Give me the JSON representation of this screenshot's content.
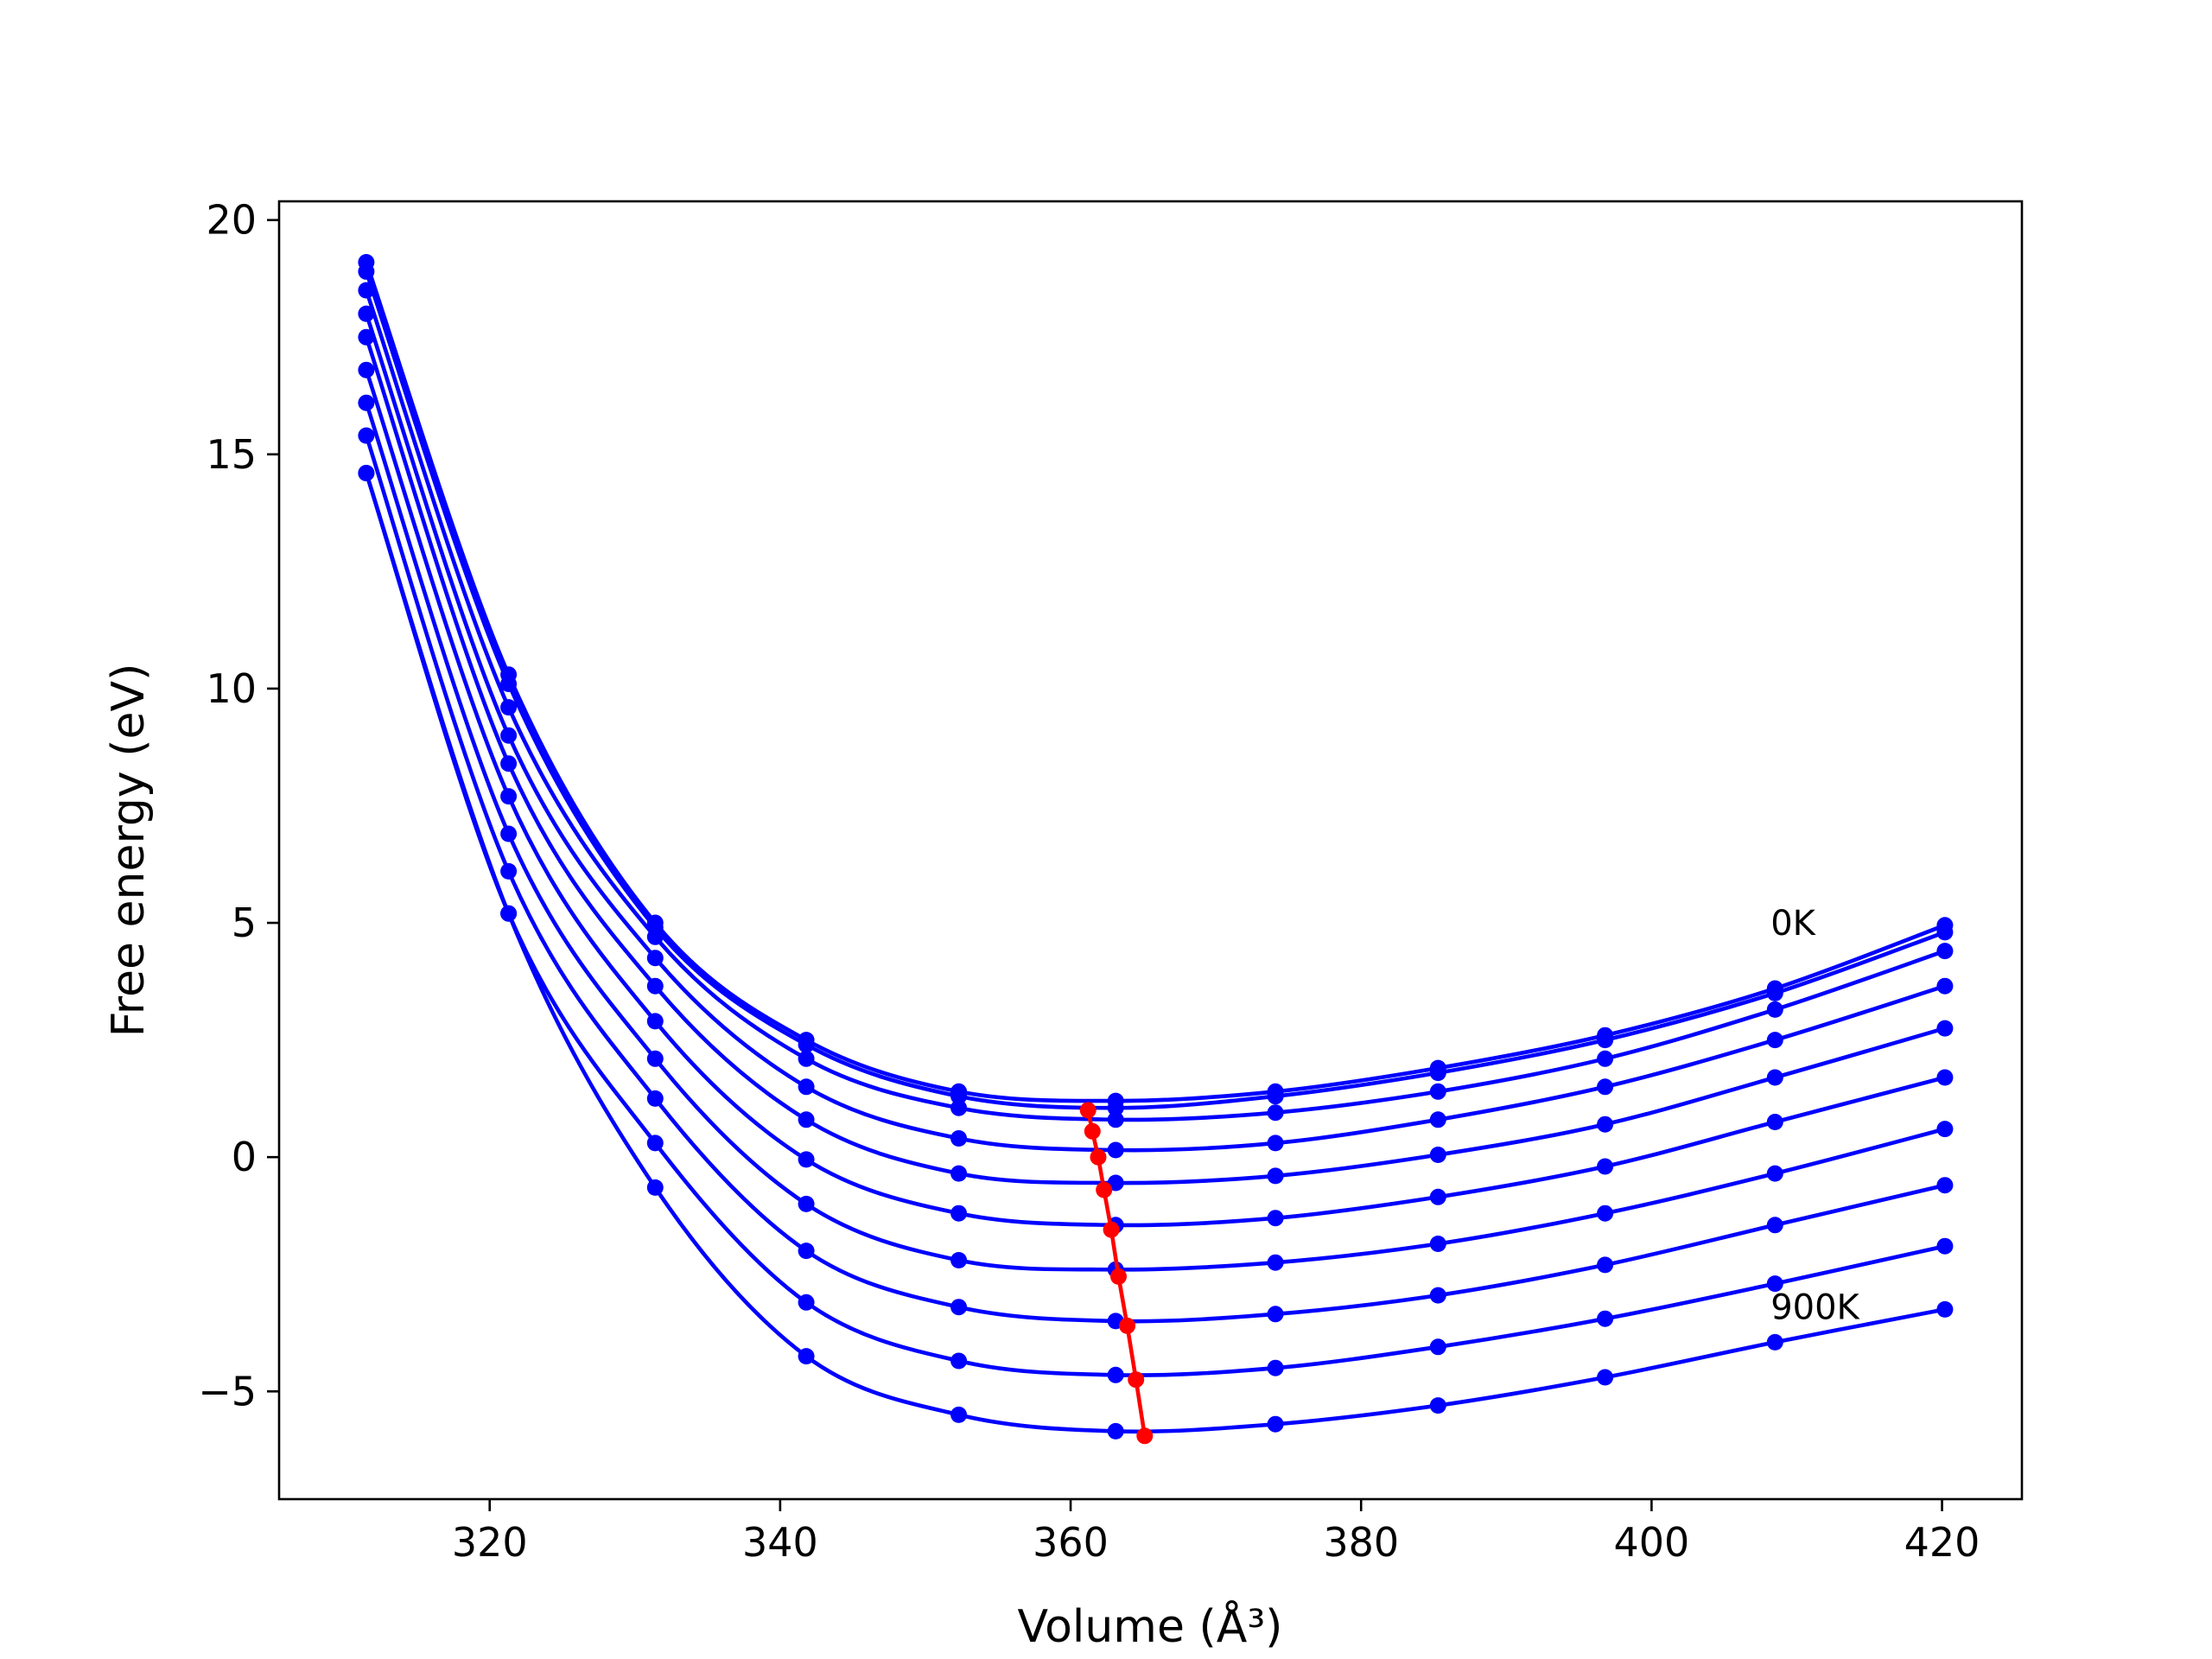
{
  "chart_data": {
    "type": "line",
    "xlabel": "Volume (Å³)",
    "ylabel": "Free energy (eV)",
    "xlim": [
      305.5,
      425.5
    ],
    "ylim": [
      -7.3,
      20.4
    ],
    "xticks": [
      320,
      340,
      360,
      380,
      400,
      420
    ],
    "yticks": [
      -5,
      0,
      5,
      10,
      15,
      20
    ],
    "xtick_labels": [
      "320",
      "340",
      "360",
      "380",
      "400",
      "420"
    ],
    "ytick_labels": [
      "−5",
      "0",
      "5",
      "10",
      "15",
      "20"
    ],
    "grid": false,
    "legend": "none",
    "annotations": [
      {
        "text": "0K",
        "x": 408.2,
        "y": 5.0
      },
      {
        "text": "900K",
        "x": 408.2,
        "y": -3.2
      }
    ],
    "x": [
      311.5,
      321.3,
      331.4,
      341.8,
      352.3,
      363.1,
      374.1,
      385.3,
      396.8,
      408.5,
      420.2
    ],
    "series": [
      {
        "values": [
          19.1,
          10.3,
          5.0,
          2.5,
          1.4,
          1.2,
          1.4,
          1.9,
          2.6,
          3.6,
          4.95
        ]
      },
      {
        "values": [
          18.9,
          10.1,
          4.9,
          2.4,
          1.3,
          1.05,
          1.3,
          1.8,
          2.5,
          3.5,
          4.8
        ]
      },
      {
        "values": [
          18.5,
          9.6,
          4.7,
          2.1,
          1.05,
          0.8,
          0.95,
          1.4,
          2.1,
          3.15,
          4.4
        ]
      },
      {
        "values": [
          18.0,
          9.0,
          4.25,
          1.5,
          0.4,
          0.15,
          0.3,
          0.8,
          1.5,
          2.5,
          3.65
        ]
      },
      {
        "values": [
          17.5,
          8.4,
          3.65,
          0.8,
          -0.35,
          -0.55,
          -0.4,
          0.05,
          0.7,
          1.7,
          2.75
        ]
      },
      {
        "values": [
          16.8,
          7.7,
          2.9,
          -0.05,
          -1.2,
          -1.45,
          -1.3,
          -0.85,
          -0.2,
          0.75,
          1.7
        ]
      },
      {
        "values": [
          16.1,
          6.9,
          2.1,
          -1.0,
          -2.2,
          -2.4,
          -2.25,
          -1.85,
          -1.2,
          -0.35,
          0.6
        ]
      },
      {
        "values": [
          15.4,
          6.1,
          1.25,
          -2.0,
          -3.2,
          -3.5,
          -3.35,
          -2.95,
          -2.3,
          -1.45,
          -0.6
        ]
      },
      {
        "values": [
          14.6,
          5.2,
          0.3,
          -3.1,
          -4.35,
          -4.65,
          -4.5,
          -4.05,
          -3.45,
          -2.7,
          -1.9
        ]
      },
      {
        "values": [
          14.6,
          5.2,
          -0.65,
          -4.25,
          -5.5,
          -5.85,
          -5.7,
          -5.3,
          -4.7,
          -3.95,
          -3.25
        ]
      }
    ],
    "minima": {
      "x": [
        361.2,
        361.5,
        361.9,
        362.3,
        362.8,
        363.3,
        363.9,
        364.5,
        365.1
      ],
      "y": [
        1.0,
        0.55,
        0.0,
        -0.7,
        -1.55,
        -2.55,
        -3.6,
        -4.75,
        -5.95
      ]
    },
    "series_color": "#0000ff",
    "minima_color": "#ff0000"
  }
}
